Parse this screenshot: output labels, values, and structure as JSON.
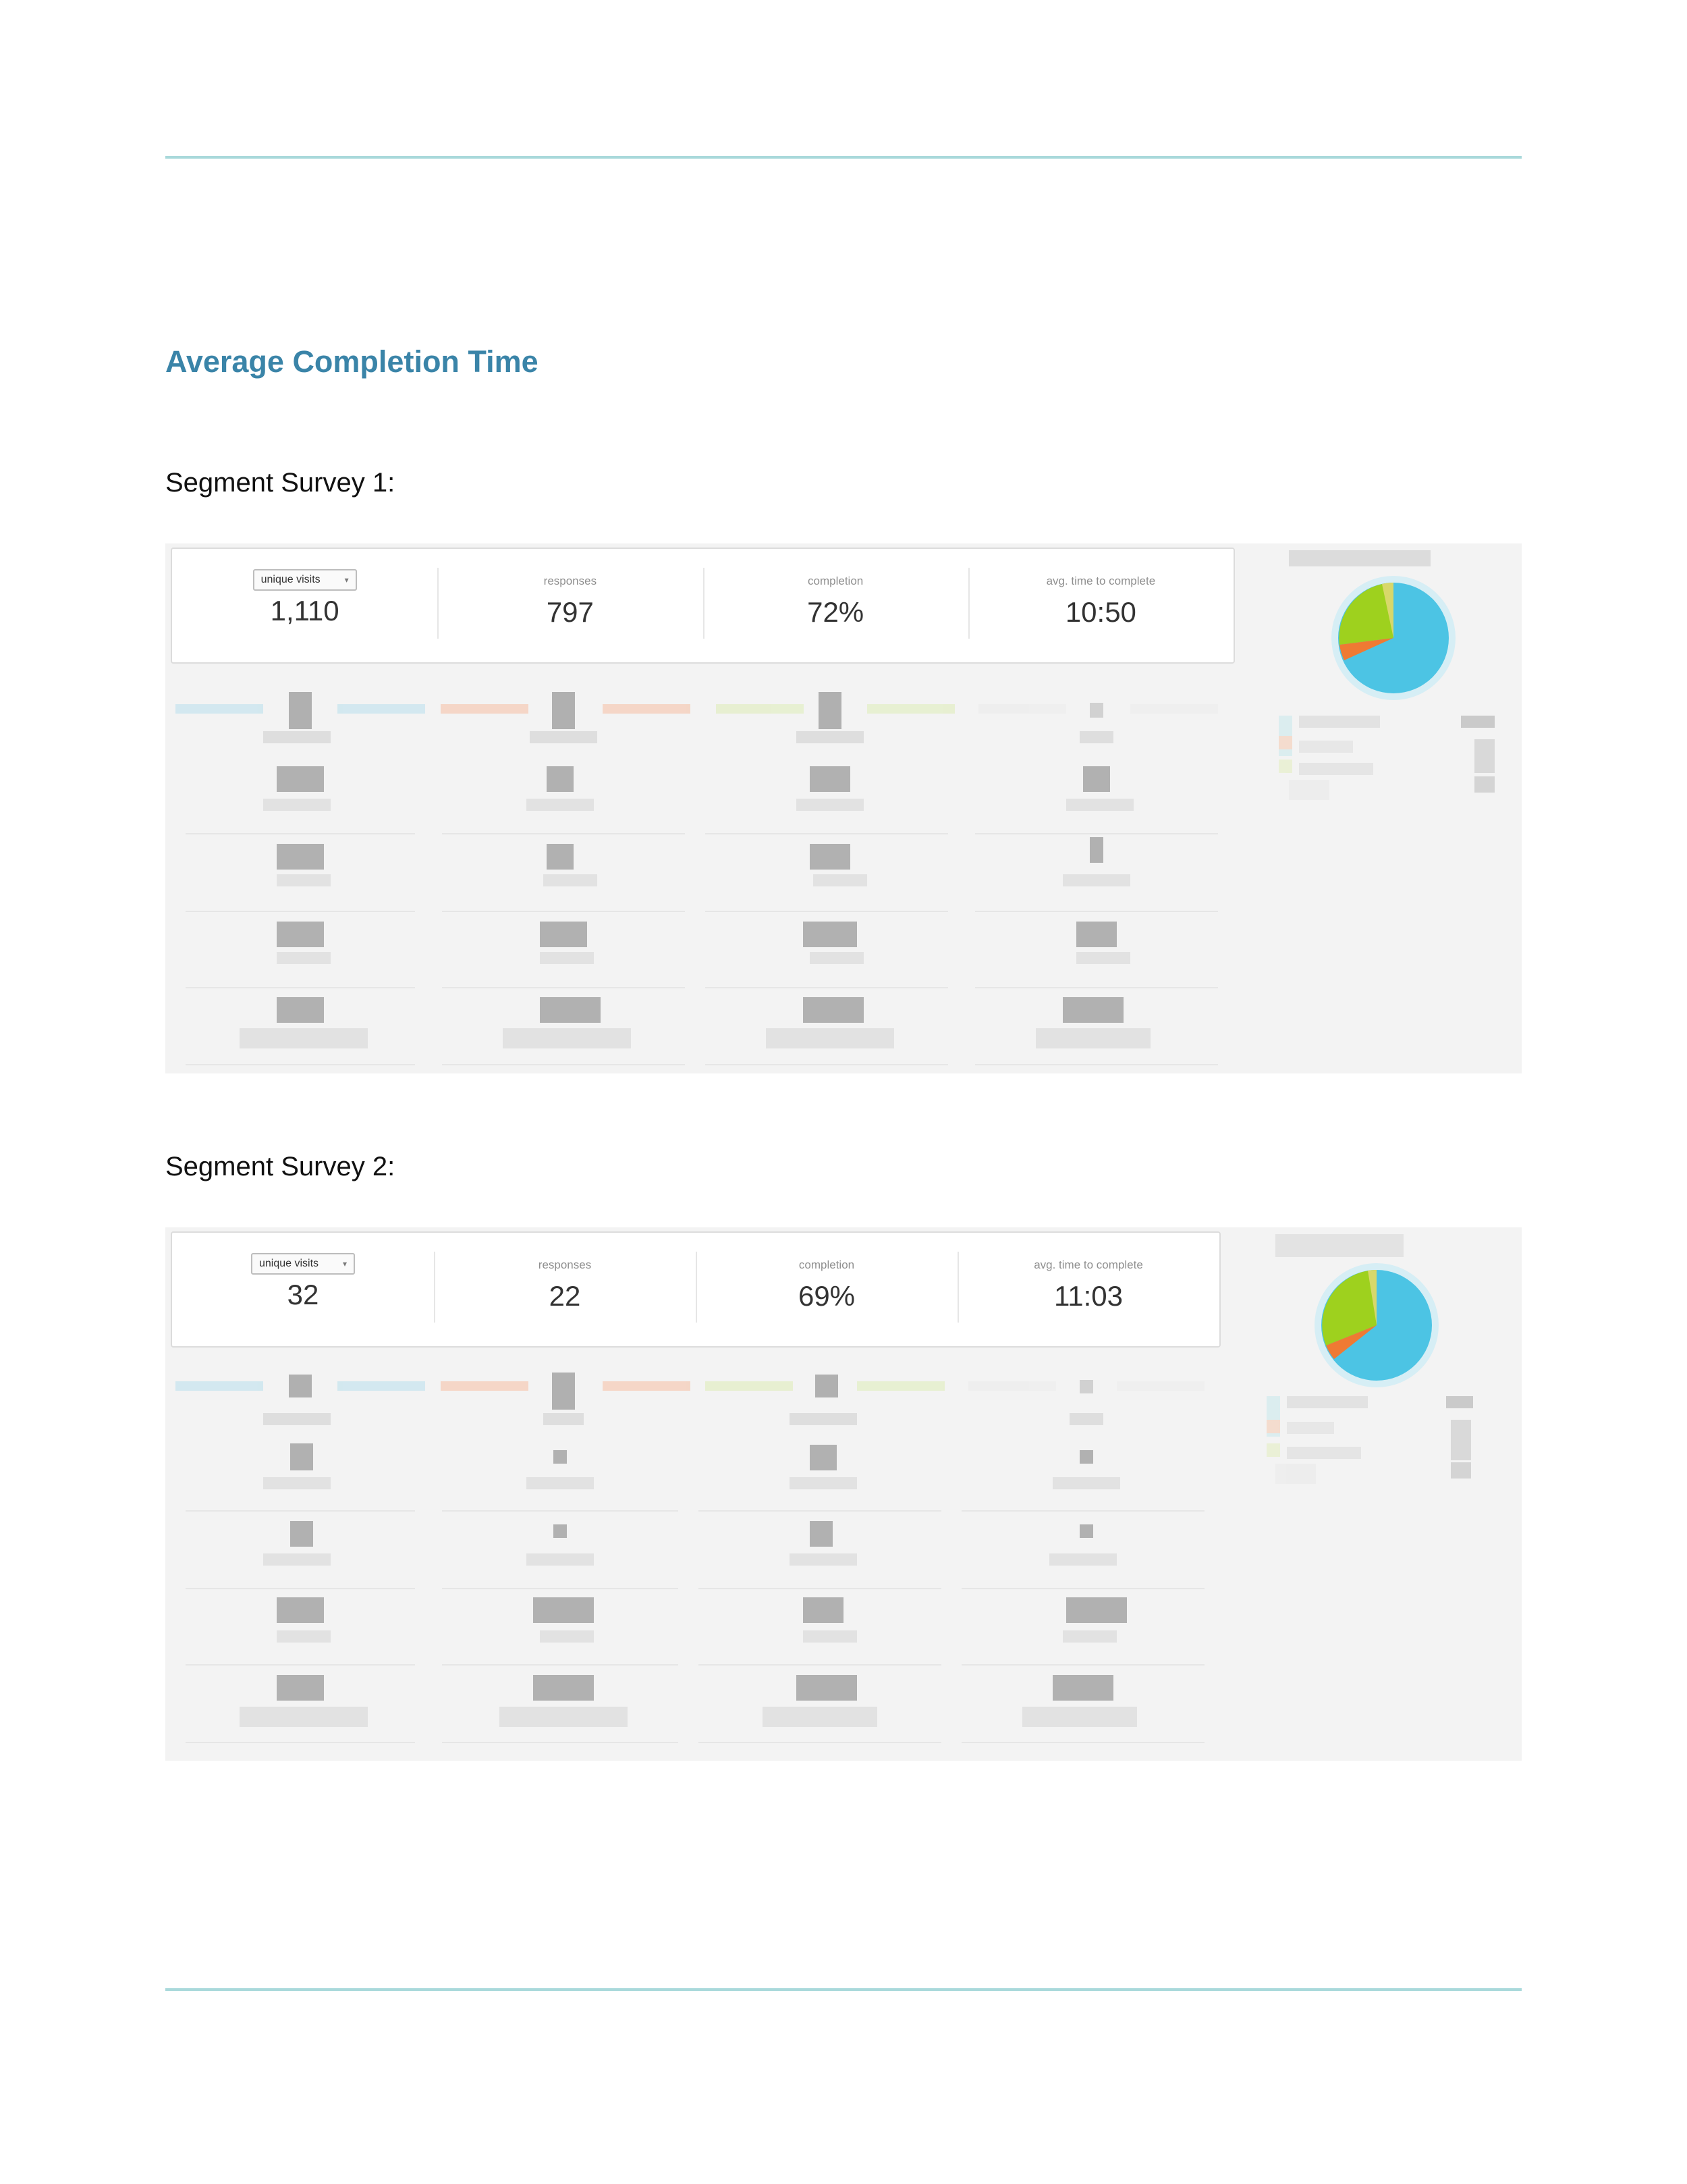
{
  "document": {
    "section_title": "Average Completion Time"
  },
  "segments": [
    {
      "label": "Segment Survey 1:",
      "stats": {
        "select_value": "unique visits",
        "visits_value": "1,110",
        "responses_label": "responses",
        "responses_value": "797",
        "completion_label": "completion",
        "completion_value": "72%",
        "time_label": "avg. time to complete",
        "time_value": "10:50"
      }
    },
    {
      "label": "Segment Survey 2:",
      "stats": {
        "select_value": "unique visits",
        "visits_value": "32",
        "responses_label": "responses",
        "responses_value": "22",
        "completion_label": "completion",
        "completion_value": "69%",
        "time_label": "avg. time to complete",
        "time_value": "11:03"
      }
    }
  ],
  "colors": {
    "rule": "#a9d9db",
    "title": "#3a84a8",
    "pie_blue": "#4cc4e4",
    "pie_green": "#9ed11e",
    "pie_orange": "#ef7a33",
    "pie_yellow": "#d8d86a"
  }
}
